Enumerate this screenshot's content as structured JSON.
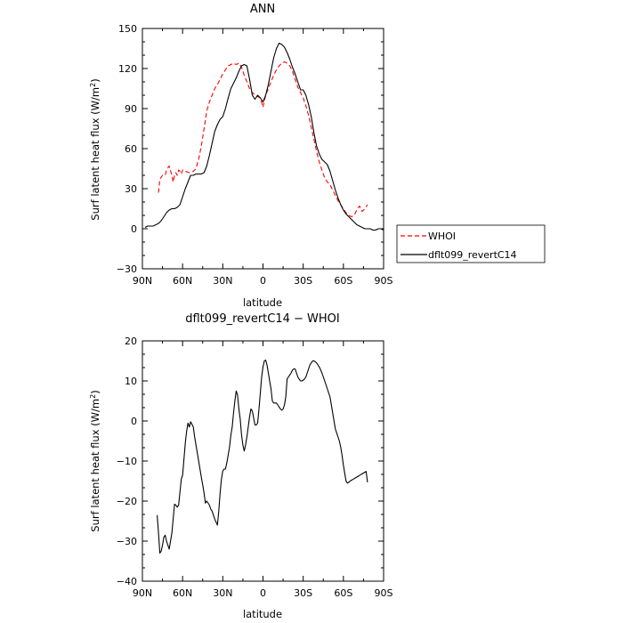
{
  "chart_data": [
    {
      "type": "line",
      "title": "ANN",
      "xlabel": "latitude",
      "ylabel": "Surf latent heat flux (W/m",
      "ylabel_sup": "2",
      "ylabel_close": ")",
      "xlim": [
        -90,
        90
      ],
      "ylim": [
        -30,
        150
      ],
      "x_ticks": [
        -90,
        -60,
        -30,
        0,
        30,
        60,
        90
      ],
      "x_tick_labels": [
        "90N",
        "60N",
        "30N",
        "0",
        "30S",
        "60S",
        "90S"
      ],
      "y_ticks": [
        -30,
        0,
        30,
        60,
        90,
        120,
        150
      ],
      "y_tick_labels": [
        "−30",
        "0",
        "30",
        "60",
        "90",
        "120",
        "150"
      ],
      "grid": false,
      "legend": "right-outside",
      "series": [
        {
          "name": "WHOI",
          "color": "#ff0000",
          "style": "dashed",
          "x": [
            -78,
            -77,
            -75,
            -73,
            -72,
            -70,
            -68,
            -67,
            -66,
            -65,
            -64,
            -63,
            -62,
            -61,
            -60,
            -58,
            -55,
            -52,
            -50,
            -48,
            -46,
            -44,
            -42,
            -40,
            -38,
            -36,
            -34,
            -32,
            -30,
            -28,
            -26,
            -24,
            -22,
            -20,
            -18,
            -16,
            -14,
            -12,
            -10,
            -8,
            -6,
            -4,
            -2,
            0,
            2,
            4,
            6,
            8,
            10,
            12,
            14,
            16,
            18,
            20,
            22,
            24,
            26,
            28,
            30,
            32,
            34,
            36,
            38,
            40,
            42,
            44,
            46,
            48,
            50,
            52,
            54,
            56,
            58,
            60,
            62,
            64,
            66,
            68,
            70,
            72,
            74,
            76,
            78
          ],
          "y": [
            27,
            37,
            40,
            40,
            44,
            47,
            40,
            35,
            40,
            42,
            40,
            44,
            43,
            41,
            44,
            43,
            42,
            43,
            45,
            52,
            62,
            75,
            88,
            95,
            100,
            105,
            108,
            112,
            116,
            119,
            122,
            123,
            124,
            123,
            124,
            121,
            115,
            110,
            105,
            102,
            100,
            99,
            98,
            91,
            100,
            105,
            110,
            115,
            119,
            122,
            124,
            125,
            124,
            122,
            118,
            112,
            106,
            102,
            98,
            92,
            85,
            76,
            67,
            58,
            50,
            44,
            38,
            35,
            33,
            29,
            25,
            21,
            18,
            15,
            12,
            10,
            9,
            10,
            14,
            17,
            13,
            15,
            18
          ]
        },
        {
          "name": "dflt099_revertC14",
          "color": "#000000",
          "style": "solid",
          "x": [
            -88,
            -86,
            -84,
            -82,
            -80,
            -78,
            -76,
            -74,
            -72,
            -70,
            -68,
            -66,
            -64,
            -62,
            -60,
            -58,
            -56,
            -54,
            -52,
            -50,
            -48,
            -46,
            -44,
            -42,
            -40,
            -38,
            -36,
            -34,
            -32,
            -30,
            -28,
            -26,
            -24,
            -22,
            -20,
            -18,
            -16,
            -14,
            -12,
            -10,
            -8,
            -6,
            -4,
            -2,
            0,
            2,
            4,
            6,
            8,
            10,
            12,
            14,
            16,
            18,
            20,
            22,
            24,
            26,
            28,
            30,
            32,
            34,
            36,
            38,
            40,
            42,
            44,
            46,
            48,
            50,
            52,
            54,
            56,
            58,
            60,
            62,
            64,
            66,
            68,
            70,
            72,
            74,
            76,
            78,
            80,
            82,
            84,
            86,
            88,
            90
          ],
          "y": [
            1,
            2,
            2,
            2,
            3,
            4,
            6,
            9,
            12,
            14,
            15,
            15,
            16,
            18,
            24,
            30,
            35,
            40,
            40,
            41,
            41,
            41,
            42,
            47,
            55,
            64,
            73,
            78,
            82,
            84,
            90,
            98,
            105,
            109,
            113,
            118,
            122,
            123,
            122,
            112,
            100,
            97,
            100,
            98,
            95,
            100,
            108,
            118,
            128,
            135,
            139,
            138,
            136,
            132,
            127,
            121,
            116,
            110,
            104,
            104,
            100,
            93,
            84,
            72,
            62,
            56,
            52,
            50,
            48,
            43,
            36,
            29,
            23,
            18,
            14,
            11,
            9,
            7,
            5,
            3,
            2,
            1,
            0,
            0,
            0,
            -1,
            -1,
            0,
            0,
            -1
          ]
        }
      ]
    },
    {
      "type": "line",
      "title": "dflt099_revertC14 − WHOI",
      "xlabel": "latitude",
      "ylabel": "Surf latent heat flux (W/m",
      "ylabel_sup": "2",
      "ylabel_close": ")",
      "xlim": [
        -90,
        90
      ],
      "ylim": [
        -40,
        20
      ],
      "x_ticks": [
        -90,
        -60,
        -30,
        0,
        30,
        60,
        90
      ],
      "x_tick_labels": [
        "90N",
        "60N",
        "30N",
        "0",
        "30S",
        "60S",
        "90S"
      ],
      "y_ticks": [
        -40,
        -30,
        -20,
        -10,
        0,
        10,
        20
      ],
      "y_tick_labels": [
        "−40",
        "−30",
        "−20",
        "−10",
        "0",
        "10",
        "20"
      ],
      "grid": false,
      "series": [
        {
          "name": "dflt099_revertC14 − WHOI",
          "color": "#000000",
          "style": "solid",
          "x": [
            -79,
            -78,
            -77,
            -76,
            -75,
            -74,
            -73,
            -72,
            -71,
            -70,
            -68,
            -66,
            -65,
            -64,
            -63,
            -61,
            -60,
            -58,
            -57,
            -56,
            -55,
            -54,
            -52,
            -51,
            -50,
            -48,
            -46,
            -45,
            -44,
            -43,
            -42,
            -40,
            -39,
            -38,
            -37,
            -36,
            -34,
            -33,
            -32,
            -31,
            -30,
            -29,
            -28,
            -27,
            -26,
            -25,
            -24,
            -23,
            -22,
            -21,
            -20,
            -19,
            -18,
            -17,
            -16,
            -15,
            -14,
            -13,
            -12,
            -11,
            -10,
            -9,
            -8,
            -6,
            -5,
            -4,
            -3,
            -2,
            -1,
            0,
            1,
            2,
            3,
            4,
            5,
            6,
            7,
            8,
            9,
            10,
            11,
            12,
            13,
            14,
            15,
            16,
            17,
            18,
            19,
            20,
            21,
            22,
            23,
            24,
            25,
            26,
            27,
            28,
            29,
            30,
            31,
            32,
            33,
            34,
            35,
            36,
            37,
            38,
            39,
            40,
            41,
            42,
            43,
            44,
            45,
            46,
            47,
            48,
            49,
            50,
            51,
            52,
            53,
            54,
            55,
            56,
            57,
            58,
            59,
            60,
            61,
            62,
            63,
            64,
            65,
            66,
            67,
            68,
            69,
            70,
            71,
            72,
            73,
            74,
            75,
            76,
            77,
            78
          ],
          "y": [
            -23.5,
            -28,
            -33,
            -32.5,
            -31,
            -29,
            -28.5,
            -30,
            -31,
            -32,
            -28,
            -20.8,
            -21,
            -21.5,
            -21,
            -14.5,
            -13.5,
            -5.5,
            -2.5,
            -0.5,
            -1.5,
            -0.2,
            -1.5,
            -4,
            -6,
            -10,
            -14,
            -16,
            -18,
            -20.5,
            -20,
            -21,
            -22,
            -22.5,
            -23.5,
            -24.5,
            -26,
            -22.5,
            -18,
            -14.5,
            -12.5,
            -12,
            -12,
            -10.5,
            -8.5,
            -6.5,
            -3.5,
            -1.5,
            2,
            5,
            7.5,
            6.5,
            3,
            0.5,
            -3.5,
            -6,
            -7.5,
            -6,
            -4,
            -1.5,
            1,
            3,
            2.5,
            -1,
            -1,
            -0.5,
            3,
            7,
            11,
            13.5,
            15,
            15.2,
            14,
            12,
            10,
            8,
            5,
            4.5,
            4.5,
            4.5,
            4,
            3.5,
            3,
            2.7,
            3,
            4,
            6,
            10.5,
            11,
            11.5,
            12,
            12.7,
            13,
            13,
            12,
            11,
            10.5,
            10,
            10,
            10.2,
            10.5,
            11,
            12,
            13,
            14,
            14.5,
            15,
            15,
            14.8,
            14.5,
            14,
            13.5,
            12.8,
            12,
            11,
            10,
            9,
            8,
            7,
            6,
            4,
            2,
            0,
            -2,
            -3,
            -4,
            -5,
            -6.5,
            -8.5,
            -11,
            -13,
            -15,
            -15.5,
            -15.3,
            -15,
            -14.8,
            -14.6,
            -14.4,
            -14.2,
            -14,
            -13.8,
            -13.6,
            -13.4,
            -13.2,
            -13,
            -12.8,
            -12.6,
            -15.3
          ]
        }
      ]
    }
  ]
}
